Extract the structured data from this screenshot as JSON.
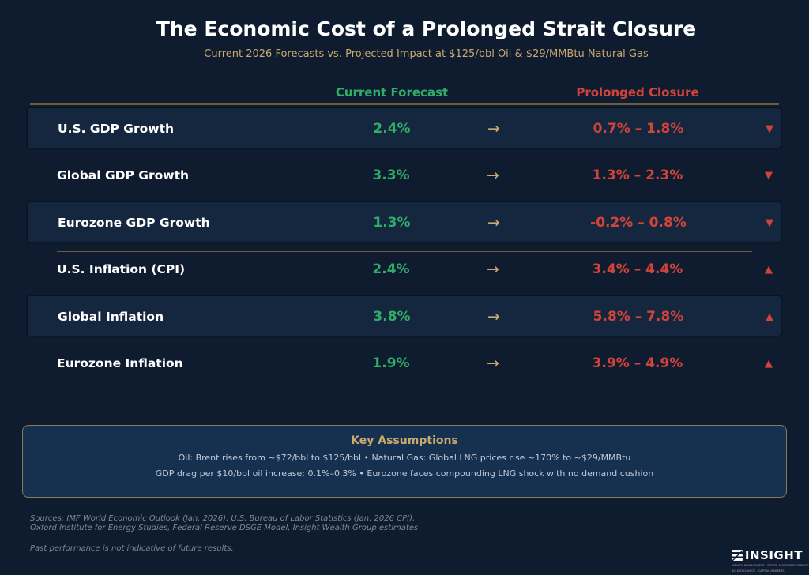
{
  "title": "The Economic Cost of a Prolonged Strait Closure",
  "subtitle": "Current 2026 Forecasts vs. Projected Impact at $125/bbl Oil & $29/MMBtu Natural Gas",
  "columns": {
    "current": "Current Forecast",
    "closure": "Prolonged Closure"
  },
  "arrow_glyph": "→",
  "rows": [
    {
      "label": "U.S. GDP Growth",
      "current": "2.4%",
      "projected": "0.7% – 1.8%",
      "direction": "▼"
    },
    {
      "label": "Global GDP Growth",
      "current": "3.3%",
      "projected": "1.3% – 2.3%",
      "direction": "▼"
    },
    {
      "label": "Eurozone GDP Growth",
      "current": "1.3%",
      "projected": "-0.2% – 0.8%",
      "direction": "▼"
    },
    {
      "label": "U.S. Inflation (CPI)",
      "current": "2.4%",
      "projected": "3.4% – 4.4%",
      "direction": "▲"
    },
    {
      "label": "Global Inflation",
      "current": "3.8%",
      "projected": "5.8% – 7.8%",
      "direction": "▲"
    },
    {
      "label": "Eurozone Inflation",
      "current": "1.9%",
      "projected": "3.9% – 4.9%",
      "direction": "▲"
    }
  ],
  "assumptions": {
    "heading": "Key Assumptions",
    "line1": "Oil: Brent rises from ~$72/bbl to $125/bbl  •  Natural Gas: Global LNG prices rise ~170% to ~$29/MMBtu",
    "line2": "GDP drag per $10/bbl oil increase: 0.1%–0.3%  •  Eurozone faces compounding LNG shock with no demand cushion"
  },
  "sources": {
    "line1": "Sources: IMF World Economic Outlook (Jan. 2026), U.S. Bureau of Labor Statistics (Jan. 2026 CPI),",
    "line2": "Oxford Institute for Energy Studies, Federal Reserve DSGE Model, Insight Wealth Group estimates"
  },
  "disclaimer": "Past performance is not indicative of future results.",
  "logo": {
    "name": "INSIGHT",
    "tagline1": "WEALTH MANAGEMENT · ESTATE & BUSINESS SERVICES",
    "tagline2": "401K EXCHANGE · CAPITAL MARKETS"
  },
  "colors": {
    "background": "#0f1c30",
    "accent_gold": "#c9a96e",
    "current_green": "#2fae66",
    "closure_red": "#d2443a"
  }
}
